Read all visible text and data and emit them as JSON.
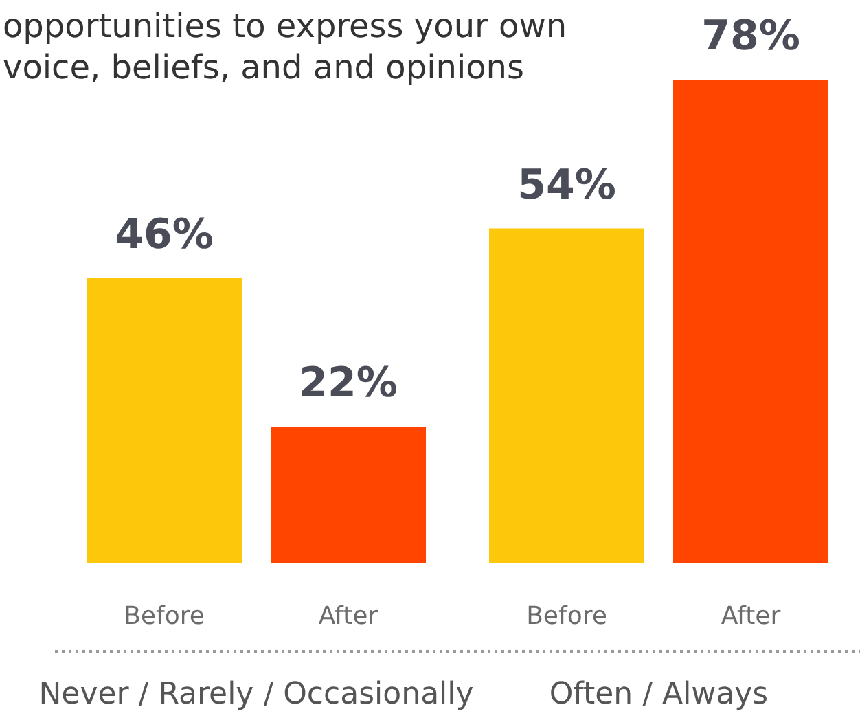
{
  "chart_data": {
    "type": "bar",
    "title": "opportunities to express your own voice, beliefs, and and opinions",
    "categories": [
      "Never / Rarely / Occasionally",
      "Often / Always"
    ],
    "series": [
      {
        "name": "Before",
        "color": "#fdc70c",
        "values": [
          46,
          54
        ],
        "value_labels": [
          "46%",
          "54%"
        ]
      },
      {
        "name": "After",
        "color": "#ff4500",
        "values": [
          22,
          78
        ],
        "value_labels": [
          "22%",
          "78%"
        ]
      }
    ],
    "legend": false,
    "grid": false
  }
}
